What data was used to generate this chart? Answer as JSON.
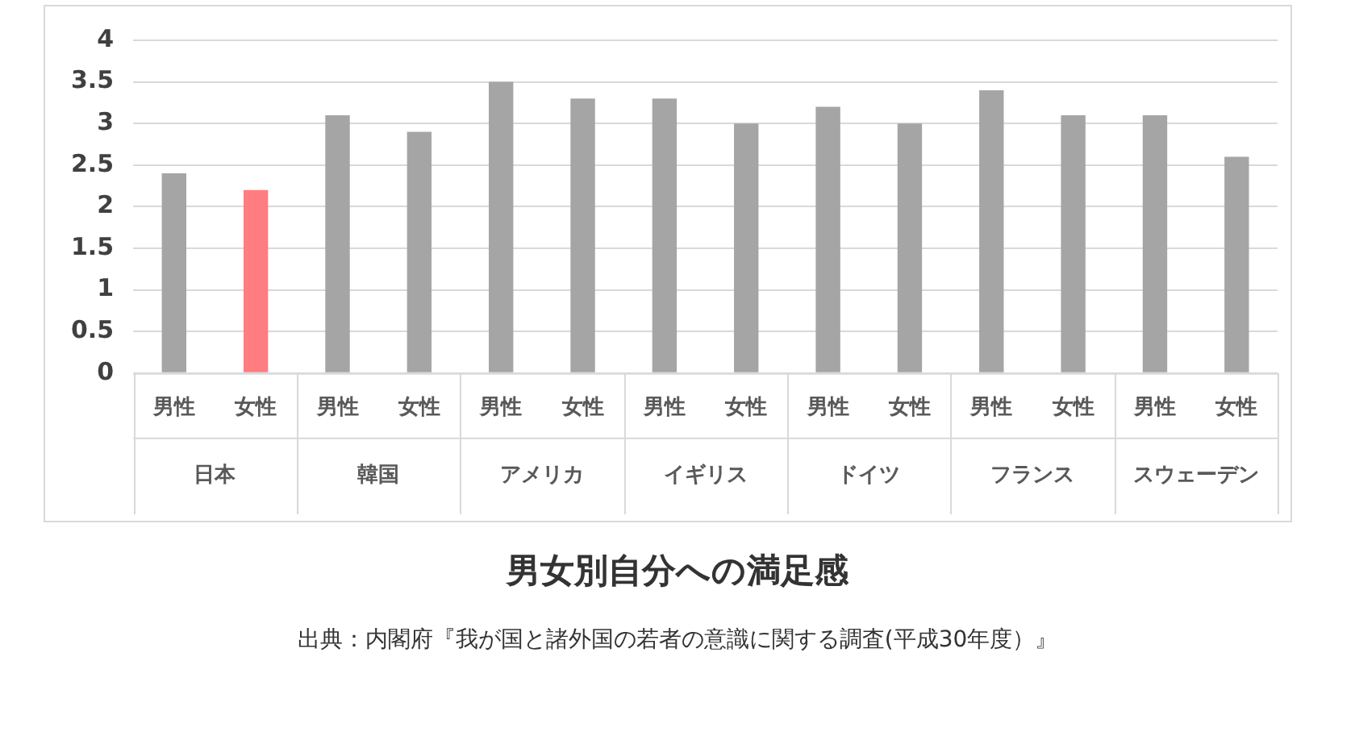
{
  "chart_data": {
    "type": "bar",
    "title": "男女別自分への満足感",
    "categories": [
      "男性",
      "女性",
      "男性",
      "女性",
      "男性",
      "女性",
      "男性",
      "女性",
      "男性",
      "女性",
      "男性",
      "女性",
      "男性",
      "女性"
    ],
    "values": [
      2.4,
      2.2,
      3.1,
      2.9,
      3.5,
      3.3,
      3.3,
      3.0,
      3.2,
      3.0,
      3.4,
      3.1,
      3.1,
      2.6
    ],
    "colors": [
      "#a5a5a5",
      "#ff7c80",
      "#a5a5a5",
      "#a5a5a5",
      "#a5a5a5",
      "#a5a5a5",
      "#a5a5a5",
      "#a5a5a5",
      "#a5a5a5",
      "#a5a5a5",
      "#a5a5a5",
      "#a5a5a5",
      "#a5a5a5",
      "#a5a5a5"
    ],
    "ylim": [
      0,
      4
    ],
    "yticks": [
      0,
      0.5,
      1,
      1.5,
      2,
      2.5,
      3,
      3.5,
      4
    ],
    "grid": "y",
    "legend": false,
    "annotations": [
      "日本",
      "韓国",
      "アメリカ",
      "イギリス",
      "ドイツ",
      "フランス",
      "スウェーデン",
      "出典：内閣府『我が国と諸外国の若者の意識に関する調査(平成30年度）』"
    ]
  }
}
